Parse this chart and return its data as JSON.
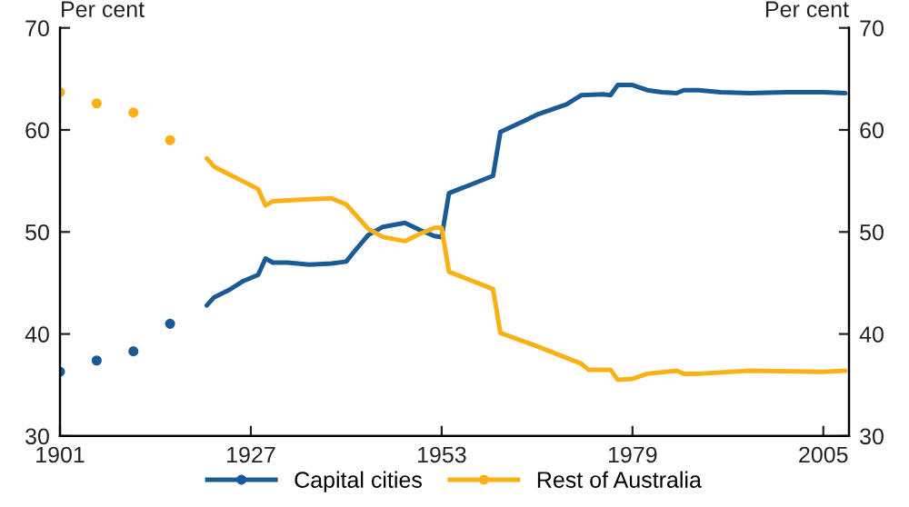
{
  "chart_data": {
    "type": "line",
    "ylabel": "Per cent",
    "y2label": "Per cent",
    "xlim": [
      1901,
      2008.5
    ],
    "xticks": [
      1901,
      1927,
      1953,
      1979,
      2005
    ],
    "ylim": [
      30,
      70
    ],
    "yticks": [
      30,
      40,
      50,
      60,
      70
    ],
    "y2lim": [
      30,
      70
    ],
    "y2ticks": [
      30,
      40,
      50,
      60,
      70
    ],
    "legend": "bottom",
    "grid": false,
    "line_style": "solid",
    "series": [
      {
        "type": "scatter",
        "marker": "circle",
        "color": "#1a5a96",
        "x": [
          1901,
          1906,
          1911,
          1916
        ],
        "values": [
          36.3,
          37.4,
          38.3,
          41.0
        ]
      },
      {
        "type": "scatter",
        "marker": "circle",
        "color": "#fbb116",
        "x": [
          1901,
          1906,
          1911,
          1916
        ],
        "values": [
          63.7,
          62.6,
          61.7,
          59.0
        ]
      },
      {
        "name": "Capital cities",
        "color": "#1a5a96",
        "x": [
          1921,
          1922,
          1924,
          1926,
          1928,
          1929,
          1930,
          1932,
          1935,
          1938,
          1940,
          1941,
          1943,
          1945,
          1948,
          1950,
          1952,
          1953,
          1954,
          1960,
          1961,
          1964,
          1966,
          1970,
          1972,
          1975,
          1976,
          1977,
          1979,
          1981,
          1983,
          1985,
          1986,
          1988,
          1991,
          1995,
          2000,
          2005,
          2008
        ],
        "values": [
          42.8,
          43.6,
          44.3,
          45.2,
          45.8,
          47.4,
          47.0,
          47.0,
          46.8,
          46.9,
          47.1,
          48.0,
          49.7,
          50.5,
          50.9,
          50.2,
          49.6,
          49.5,
          53.8,
          55.5,
          59.8,
          60.8,
          61.5,
          62.5,
          63.4,
          63.5,
          63.4,
          64.4,
          64.4,
          63.9,
          63.7,
          63.6,
          63.9,
          63.9,
          63.7,
          63.6,
          63.7,
          63.7,
          63.6
        ]
      },
      {
        "name": "Rest of Australia",
        "color": "#fbb116",
        "x": [
          1921,
          1922,
          1928,
          1929,
          1930,
          1935,
          1938,
          1940,
          1943,
          1945,
          1948,
          1950,
          1952,
          1953,
          1954,
          1960,
          1961,
          1966,
          1972,
          1973,
          1976,
          1977,
          1979,
          1981,
          1985,
          1986,
          1988,
          1995,
          2005,
          2008
        ],
        "values": [
          57.2,
          56.4,
          54.2,
          52.6,
          53.0,
          53.2,
          53.3,
          52.7,
          50.3,
          49.5,
          49.1,
          49.8,
          50.4,
          50.4,
          46.1,
          44.4,
          40.1,
          38.8,
          37.1,
          36.5,
          36.5,
          35.5,
          35.6,
          36.1,
          36.4,
          36.1,
          36.1,
          36.4,
          36.3,
          36.4
        ]
      }
    ]
  }
}
